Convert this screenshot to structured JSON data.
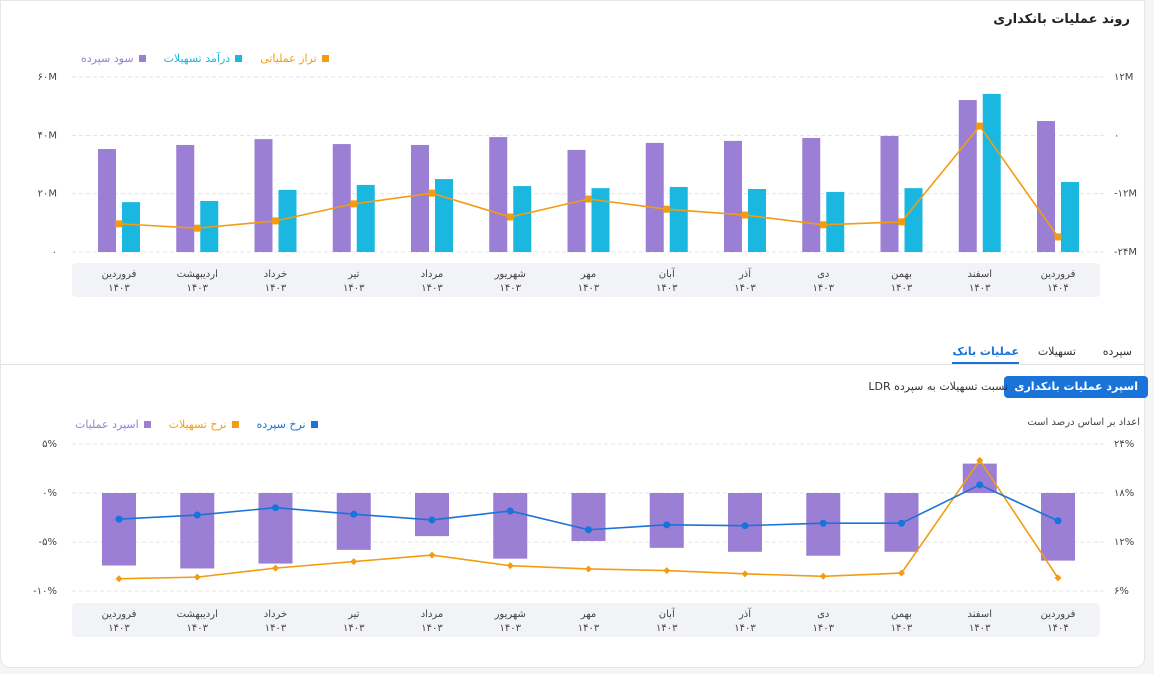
{
  "header": {
    "title": "روند عملیات بانکداری"
  },
  "tabs": [
    "سپرده",
    "تسهیلات",
    "عملیات بانک"
  ],
  "buttons": [
    "اسپرد عملیات بانکداری",
    "نسبت تسهیلات به سپرده LDR"
  ],
  "note": "اعداد بر اساس درصد است",
  "chart_data": [
    {
      "type": "bar",
      "categories": [
        [
          "فروردین",
          "۱۴۰۳"
        ],
        [
          "اردیبهشت",
          "۱۴۰۳"
        ],
        [
          "خرداد",
          "۱۴۰۳"
        ],
        [
          "تیر",
          "۱۴۰۳"
        ],
        [
          "مرداد",
          "۱۴۰۳"
        ],
        [
          "شهریور",
          "۱۴۰۳"
        ],
        [
          "مهر",
          "۱۴۰۳"
        ],
        [
          "آبان",
          "۱۴۰۳"
        ],
        [
          "آذر",
          "۱۴۰۳"
        ],
        [
          "دی",
          "۱۴۰۳"
        ],
        [
          "بهمن",
          "۱۴۰۳"
        ],
        [
          "اسفند",
          "۱۴۰۳"
        ],
        [
          "فروردین",
          "۱۴۰۴"
        ]
      ],
      "series": [
        {
          "name": "سود سپرده",
          "color": "#9b7fd4",
          "type": "bar",
          "values": [
            35300000,
            36700000,
            38700000,
            37000000,
            36700000,
            39400000,
            35000000,
            37400000,
            38100000,
            39100000,
            39800000,
            52100000,
            44900000
          ]
        },
        {
          "name": "درآمد تسهیلات",
          "color": "#1ab8e0",
          "type": "bar",
          "values": [
            17100000,
            17500000,
            21300000,
            23000000,
            25000000,
            22600000,
            21900000,
            22300000,
            21600000,
            20600000,
            21900000,
            54200000,
            24000000
          ]
        },
        {
          "name": "تراز عملیاتی",
          "color": "#f39c12",
          "type": "line",
          "axis": "y2",
          "marker": "square",
          "values": [
            -18200000,
            -19100000,
            -17600000,
            -14100000,
            -11900000,
            -16800000,
            -13100000,
            -15200000,
            -16400000,
            -18400000,
            -17800000,
            1900000,
            -20900000
          ]
        }
      ],
      "ylim": [
        0,
        60000000
      ],
      "yticks": [
        {
          "value": 0,
          "label": "۰"
        },
        {
          "value": 20000000,
          "label": "۲۰M"
        },
        {
          "value": 40000000,
          "label": "۴۰M"
        },
        {
          "value": 60000000,
          "label": "۶۰M"
        }
      ],
      "y2lim": [
        -24000000,
        12000000
      ],
      "y2ticks": [
        {
          "value": -24000000,
          "label": "-۲۴M"
        },
        {
          "value": -12000000,
          "label": "-۱۲M"
        },
        {
          "value": 0,
          "label": "۰"
        },
        {
          "value": 12000000,
          "label": "۱۲M"
        }
      ],
      "grid": true
    },
    {
      "type": "bar",
      "categories": [
        [
          "فروردین",
          "۱۴۰۳"
        ],
        [
          "اردیبهشت",
          "۱۴۰۳"
        ],
        [
          "خرداد",
          "۱۴۰۳"
        ],
        [
          "تیر",
          "۱۴۰۳"
        ],
        [
          "مرداد",
          "۱۴۰۳"
        ],
        [
          "شهریور",
          "۱۴۰۳"
        ],
        [
          "مهر",
          "۱۴۰۳"
        ],
        [
          "آبان",
          "۱۴۰۳"
        ],
        [
          "آذر",
          "۱۴۰۳"
        ],
        [
          "دی",
          "۱۴۰۳"
        ],
        [
          "بهمن",
          "۱۴۰۳"
        ],
        [
          "اسفند",
          "۱۴۰۳"
        ],
        [
          "فروردین",
          "۱۴۰۴"
        ]
      ],
      "series": [
        {
          "name": "اسپرد عملیات",
          "color": "#9b7fd4",
          "type": "bar",
          "values": [
            -7.4,
            -7.7,
            -7.2,
            -5.8,
            -4.4,
            -6.7,
            -4.9,
            -5.6,
            -6.0,
            -6.4,
            -6.0,
            3.0,
            -6.9
          ]
        },
        {
          "name": "نرخ تسهیلات",
          "color": "#f39c12",
          "type": "line",
          "axis": "y2",
          "marker": "diamond",
          "values": [
            7.5,
            7.7,
            8.8,
            9.6,
            10.4,
            9.1,
            8.7,
            8.5,
            8.1,
            7.8,
            8.2,
            22.0,
            7.6
          ]
        },
        {
          "name": "نرخ سپرده",
          "color": "#1a73d9",
          "type": "line",
          "axis": "y2",
          "marker": "circle",
          "values": [
            14.8,
            15.3,
            16.2,
            15.4,
            14.7,
            15.8,
            13.5,
            14.1,
            14.0,
            14.3,
            14.3,
            19.0,
            14.6
          ]
        }
      ],
      "ylim": [
        -10,
        5
      ],
      "yticks": [
        {
          "value": -10,
          "label": "-۱۰%"
        },
        {
          "value": -5,
          "label": "-۵%"
        },
        {
          "value": 0,
          "label": "۰%"
        },
        {
          "value": 5,
          "label": "۵%"
        }
      ],
      "y2lim": [
        6,
        24
      ],
      "y2ticks": [
        {
          "value": 6,
          "label": "۶%"
        },
        {
          "value": 12,
          "label": "۱۲%"
        },
        {
          "value": 18,
          "label": "۱۸%"
        },
        {
          "value": 24,
          "label": "۲۴%"
        }
      ],
      "grid": true
    }
  ]
}
